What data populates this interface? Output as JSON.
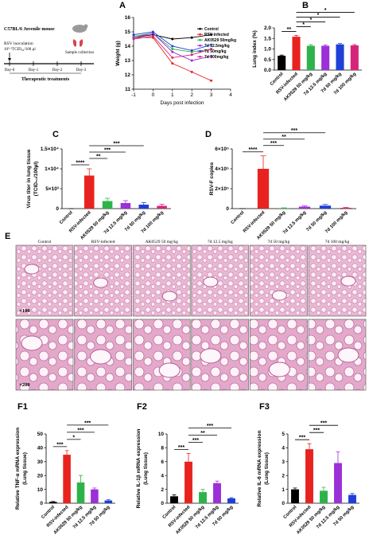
{
  "schematic": {
    "title": "C57BL/6 Juvenile mouse",
    "inoculation": "RSV inoculation",
    "dose": "10⁵·⁵TCID₅₀/100 µl",
    "days": [
      "Day-0",
      "Day-1",
      "Day-2",
      "Day-3"
    ],
    "collection": "Sample collection",
    "treatment": "Therapeutic treatments"
  },
  "histology": {
    "panel": "E",
    "columns": [
      "Control",
      "RSV-infected",
      "AK0529 50 mg/kg",
      "7d 12.5 mg/kg",
      "7d 50 mg/kg",
      "7d 100 mg/kg"
    ],
    "magnifications": [
      "×100",
      "×200"
    ]
  },
  "chart_data": [
    {
      "type": "line",
      "panel": "A",
      "xlabel": "Days post infection",
      "ylabel": "Weight (g)",
      "x": [
        -1,
        0,
        1,
        2,
        3
      ],
      "xlim": [
        -1,
        4
      ],
      "xticks": [
        -1,
        0,
        1,
        2,
        3,
        4
      ],
      "ylim": [
        11,
        16
      ],
      "yticks": [
        11,
        12,
        13,
        14,
        15,
        16
      ],
      "legend": "upper right",
      "series": [
        {
          "name": "Control",
          "color": "#000000",
          "values": [
            14.6,
            14.8,
            14.5,
            14.6,
            14.8
          ]
        },
        {
          "name": "RSV-infected",
          "color": "#e8231f",
          "values": [
            14.6,
            14.6,
            12.8,
            12.2,
            11.6
          ]
        },
        {
          "name": "AK0529 50mg/kg",
          "color": "#2db34a",
          "values": [
            14.7,
            14.9,
            13.8,
            13.6,
            13.8
          ]
        },
        {
          "name": "7d 12.5mg/kg",
          "color": "#9b30d9",
          "values": [
            14.6,
            14.9,
            13.6,
            13.0,
            13.3
          ]
        },
        {
          "name": "7d 50mg/kg",
          "color": "#1f3fd6",
          "values": [
            14.8,
            15.0,
            14.0,
            13.7,
            14.1
          ]
        },
        {
          "name": "7d 100mg/kg",
          "color": "#d6247a",
          "values": [
            14.5,
            14.7,
            13.2,
            13.4,
            13.8
          ]
        }
      ]
    },
    {
      "type": "bar",
      "panel": "B",
      "ylabel": "Lung index (%)",
      "categories": [
        "Control",
        "RSV-infected",
        "AK0529 50 mg/kg",
        "7d 12.5 mg/kg",
        "7d 50 mg/kg",
        "7d 100 mg/kg"
      ],
      "values": [
        0.68,
        1.58,
        1.15,
        1.15,
        1.22,
        1.17
      ],
      "errors": [
        0.03,
        0.06,
        0.05,
        0.04,
        0.04,
        0.04
      ],
      "colors": [
        "#000000",
        "#e8231f",
        "#2db34a",
        "#9b30d9",
        "#1f3fd6",
        "#d6247a"
      ],
      "ylim": [
        0,
        2
      ],
      "yticks": [
        {
          "value": 0,
          "label": "0.0"
        },
        0.5,
        {
          "value": 1,
          "label": "1.0"
        },
        1.5,
        {
          "value": 2,
          "label": "2.0"
        }
      ],
      "annotations": [
        "**",
        "*",
        "*",
        "*",
        "*"
      ]
    },
    {
      "type": "bar",
      "panel": "C",
      "ylabel": [
        "Virus titer in lung tissue",
        "(TCID₅₀/100µl)"
      ],
      "categories": [
        "Control",
        "RSV-infected",
        "AK0529 50 mg/kg",
        "7d 12.5 mg/kg",
        "7d 50 mg/kg",
        "7d 100 mg/kg"
      ],
      "values": [
        0,
        8300,
        1900,
        1400,
        1000,
        700
      ],
      "errors": [
        0,
        1700,
        700,
        600,
        500,
        400
      ],
      "colors": [
        "#000000",
        "#e8231f",
        "#2db34a",
        "#9b30d9",
        "#1f3fd6",
        "#d6247a"
      ],
      "ylim": [
        0,
        15000
      ],
      "yticks": [
        0,
        {
          "value": 5000,
          "label": "5×10³"
        },
        {
          "value": 10000,
          "label": "1×10⁴"
        },
        {
          "value": 15000,
          "label": "1.5×10⁴"
        }
      ],
      "annotations": [
        "****",
        "**",
        "***",
        "***"
      ]
    },
    {
      "type": "bar",
      "panel": "D",
      "ylabel": "RSV-F copies",
      "categories": [
        "Control",
        "RSV-infected",
        "AK0529 50 mg/kg",
        "7d 12.5 mg/kg",
        "7d 50 mg/kg",
        "7d 100 mg/kg"
      ],
      "values": [
        0,
        400000,
        5000,
        20000,
        30000,
        8000
      ],
      "errors": [
        0,
        130000,
        3000,
        8000,
        12000,
        5000
      ],
      "colors": [
        "#000000",
        "#e8231f",
        "#2db34a",
        "#9b30d9",
        "#1f3fd6",
        "#d6247a"
      ],
      "ylim": [
        0,
        600000
      ],
      "yticks": [
        0,
        {
          "value": 200000,
          "label": "2×10⁵"
        },
        {
          "value": 400000,
          "label": "4×10⁵"
        },
        {
          "value": 600000,
          "label": "6×10⁵"
        }
      ],
      "annotations": [
        "****",
        "***",
        "**",
        "***"
      ]
    },
    {
      "type": "bar",
      "panel": "F1",
      "ylabel": [
        "Relative TNF-α mRNA expression",
        "(Lung tissue)"
      ],
      "categories": [
        "Control",
        "RSV-infected",
        "AK0529 50 mg/kg",
        "7d 12.5 mg/kg",
        "7d 50 mg/kg"
      ],
      "values": [
        1,
        35,
        15,
        10,
        2
      ],
      "errors": [
        0.3,
        3,
        5,
        1,
        0.5
      ],
      "colors": [
        "#000000",
        "#e8231f",
        "#2db34a",
        "#9b30d9",
        "#1f3fd6"
      ],
      "ylim": [
        0,
        50
      ],
      "yticks": [
        0,
        10,
        20,
        30,
        40,
        50
      ],
      "annotations": [
        "***",
        "*",
        "***",
        "***"
      ]
    },
    {
      "type": "bar",
      "panel": "F2",
      "ylabel": [
        "Relative IL-1β mRNA expression",
        "(Lung tissue)"
      ],
      "categories": [
        "Control",
        "RSV-infected",
        "AK0529 50 mg/kg",
        "7d 12.5 mg/kg",
        "7d 50 mg/kg"
      ],
      "values": [
        1,
        6,
        1.6,
        2.9,
        0.7
      ],
      "errors": [
        0.2,
        1.2,
        0.4,
        0.3,
        0.1
      ],
      "colors": [
        "#000000",
        "#e8231f",
        "#2db34a",
        "#9b30d9",
        "#1f3fd6"
      ],
      "ylim": [
        0,
        10
      ],
      "yticks": [
        0,
        2,
        4,
        6,
        8,
        10
      ],
      "annotations": [
        "***",
        "***",
        "**",
        "***"
      ]
    },
    {
      "type": "bar",
      "panel": "F3",
      "ylabel": [
        "Relative IL-6 mRNA expression",
        "(Lung tissue)"
      ],
      "categories": [
        "Control",
        "RSV-infected",
        "AK0529 50 mg/kg",
        "7d 12.5 mg/kg",
        "7d 50 mg/kg"
      ],
      "values": [
        1,
        3.9,
        0.9,
        2.9,
        0.6
      ],
      "errors": [
        0.1,
        0.4,
        0.25,
        0.8,
        0.1
      ],
      "colors": [
        "#000000",
        "#e8231f",
        "#2db34a",
        "#9b30d9",
        "#1f3fd6"
      ],
      "ylim": [
        0,
        5
      ],
      "yticks": [
        0,
        1,
        2,
        3,
        4,
        5
      ],
      "annotations": [
        "***",
        "***",
        "***"
      ]
    }
  ]
}
